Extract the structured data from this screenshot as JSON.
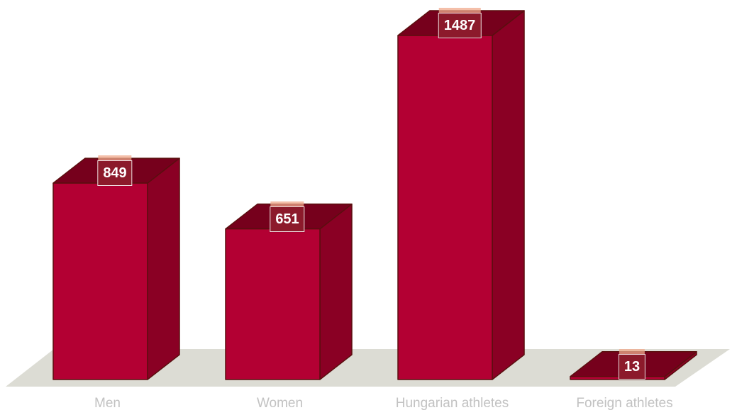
{
  "chart_data": {
    "type": "bar",
    "categories": [
      "Men",
      "Women",
      "Hungarian athletes",
      "Foreign athletes"
    ],
    "values": [
      849,
      651,
      1487,
      13
    ],
    "data_labels": [
      "849",
      "651",
      "1487",
      "13"
    ],
    "title": "",
    "xlabel": "",
    "ylabel": "",
    "grid": false,
    "style": "3d",
    "colors": {
      "bar_front": "#b30033",
      "bar_side": "#8a0024",
      "bar_top": "#76001c",
      "floor": "#dcdcd4",
      "label_box": "#8c1a2b",
      "category_text": "#c2c2c2"
    }
  }
}
